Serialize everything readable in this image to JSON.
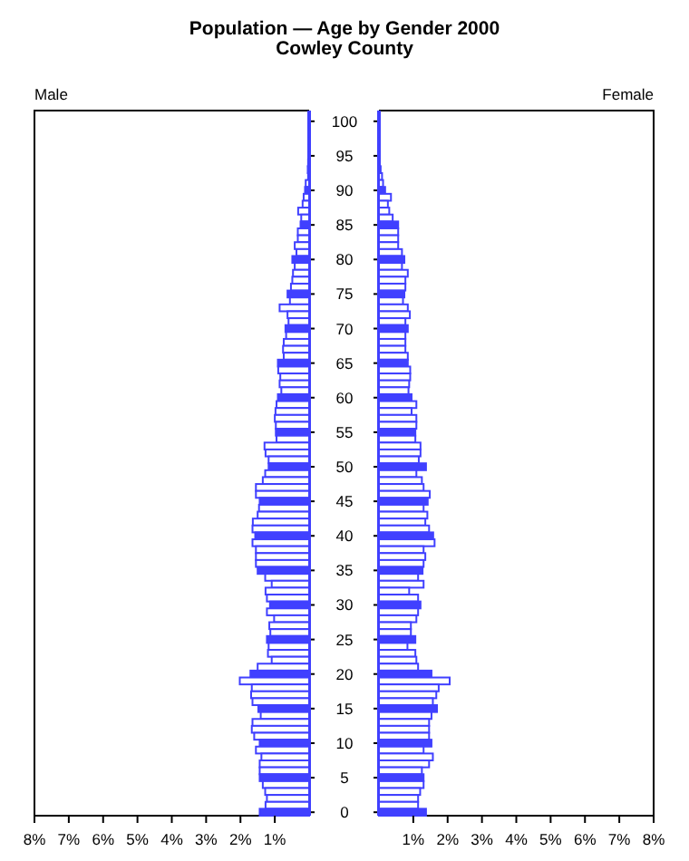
{
  "chart_data": [
    {
      "type": "bar",
      "orientation": "horizontal",
      "title": "Population — Age by Gender 2000",
      "subtitle": "Cowley County",
      "ylabel": "Male",
      "categories": [
        "100",
        null,
        null,
        null,
        null,
        "95",
        null,
        null,
        null,
        null,
        "90",
        null,
        null,
        null,
        null,
        "85",
        null,
        null,
        null,
        null,
        "80",
        null,
        null,
        null,
        null,
        "75",
        null,
        null,
        null,
        null,
        "70",
        null,
        null,
        null,
        null,
        "65",
        null,
        null,
        null,
        null,
        "60",
        null,
        null,
        null,
        null,
        "55",
        null,
        null,
        null,
        null,
        "50",
        null,
        null,
        null,
        null,
        "45",
        null,
        null,
        null,
        null,
        "40",
        null,
        null,
        null,
        null,
        "35",
        null,
        null,
        null,
        null,
        "30",
        null,
        null,
        null,
        null,
        "25",
        null,
        null,
        null,
        null,
        "20",
        null,
        null,
        null,
        null,
        "15",
        null,
        null,
        null,
        null,
        "10",
        null,
        null,
        null,
        null,
        "5",
        null,
        null,
        null,
        null,
        "0"
      ],
      "series": [
        {
          "color": "#4040ff",
          "values": [
            0.01,
            0.01,
            0.01,
            0.01,
            0.02,
            0.02,
            0.03,
            0.04,
            0.03,
            0.1,
            0.12,
            0.16,
            0.19,
            0.32,
            0.23,
            0.25,
            0.33,
            0.33,
            0.42,
            0.37,
            0.49,
            0.42,
            0.47,
            0.49,
            0.53,
            0.63,
            0.56,
            0.86,
            0.63,
            0.6,
            0.69,
            0.67,
            0.74,
            0.76,
            0.74,
            0.91,
            0.9,
            0.84,
            0.86,
            0.81,
            0.91,
            0.95,
            0.98,
            1.0,
            0.97,
            0.97,
            0.95,
            1.3,
            1.27,
            1.18,
            1.18,
            1.28,
            1.35,
            1.55,
            1.55,
            1.44,
            1.46,
            1.5,
            1.64,
            1.65,
            1.57,
            1.65,
            1.55,
            1.55,
            1.55,
            1.5,
            1.28,
            1.09,
            1.27,
            1.23,
            1.14,
            1.23,
            1.02,
            1.16,
            1.13,
            1.23,
            1.18,
            1.2,
            1.09,
            1.5,
            1.71,
            2.02,
            1.67,
            1.69,
            1.65,
            1.48,
            1.41,
            1.65,
            1.67,
            1.6,
            1.44,
            1.55,
            1.39,
            1.44,
            1.44,
            1.44,
            1.35,
            1.28,
            1.23,
            1.27,
            1.44
          ],
          "colors": [
            "#4040ff",
            "#ffffff",
            "#ffffff",
            "#ffffff",
            "#ffffff",
            "#4040ff",
            "#ffffff",
            "#ffffff",
            "#ffffff",
            "#ffffff",
            "#4040ff",
            "#ffffff",
            "#ffffff",
            "#ffffff",
            "#ffffff",
            "#4040ff",
            "#ffffff",
            "#ffffff",
            "#ffffff",
            "#ffffff",
            "#4040ff",
            "#ffffff",
            "#ffffff",
            "#ffffff",
            "#ffffff",
            "#4040ff",
            "#ffffff",
            "#ffffff",
            "#ffffff",
            "#ffffff",
            "#4040ff",
            "#ffffff",
            "#ffffff",
            "#ffffff",
            "#ffffff",
            "#4040ff",
            "#ffffff",
            "#ffffff",
            "#ffffff",
            "#ffffff",
            "#4040ff",
            "#ffffff",
            "#ffffff",
            "#ffffff",
            "#ffffff",
            "#4040ff",
            "#ffffff",
            "#ffffff",
            "#ffffff",
            "#ffffff",
            "#4040ff",
            "#ffffff",
            "#ffffff",
            "#ffffff",
            "#ffffff",
            "#4040ff",
            "#ffffff",
            "#ffffff",
            "#ffffff",
            "#ffffff",
            "#4040ff",
            "#ffffff",
            "#ffffff",
            "#ffffff",
            "#ffffff",
            "#4040ff",
            "#ffffff",
            "#ffffff",
            "#ffffff",
            "#ffffff",
            "#4040ff",
            "#ffffff",
            "#ffffff",
            "#ffffff",
            "#ffffff",
            "#4040ff",
            "#ffffff",
            "#ffffff",
            "#ffffff",
            "#ffffff",
            "#4040ff",
            "#ffffff",
            "#ffffff",
            "#ffffff",
            "#ffffff",
            "#4040ff",
            "#ffffff",
            "#ffffff",
            "#ffffff",
            "#ffffff",
            "#4040ff",
            "#ffffff",
            "#ffffff",
            "#ffffff",
            "#ffffff",
            "#4040ff",
            "#ffffff",
            "#ffffff",
            "#ffffff",
            "#ffffff",
            "#4040ff"
          ]
        }
      ],
      "xlim": [
        8,
        0
      ],
      "xticks": [
        {
          "value": 8,
          "label": "8%"
        },
        {
          "value": 7,
          "label": "7%"
        },
        {
          "value": 6,
          "label": "6%"
        },
        {
          "value": 5,
          "label": "5%"
        },
        {
          "value": 4,
          "label": "4%"
        },
        {
          "value": 3,
          "label": "3%"
        },
        {
          "value": 2,
          "label": "2%"
        },
        {
          "value": 1,
          "label": "1%"
        }
      ]
    },
    {
      "type": "bar",
      "orientation": "horizontal",
      "ylabel": "Female",
      "tick_labels": "x",
      "categories": [
        "100",
        null,
        null,
        null,
        null,
        "95",
        null,
        null,
        null,
        null,
        "90",
        null,
        null,
        null,
        null,
        "85",
        null,
        null,
        null,
        null,
        "80",
        null,
        null,
        null,
        null,
        "75",
        null,
        null,
        null,
        null,
        "70",
        null,
        null,
        null,
        null,
        "65",
        null,
        null,
        null,
        null,
        "60",
        null,
        null,
        null,
        null,
        "55",
        null,
        null,
        null,
        null,
        "50",
        null,
        null,
        null,
        null,
        "45",
        null,
        null,
        null,
        null,
        "40",
        null,
        null,
        null,
        null,
        "35",
        null,
        null,
        null,
        null,
        "30",
        null,
        null,
        null,
        null,
        "25",
        null,
        null,
        null,
        null,
        "20",
        null,
        null,
        null,
        null,
        "15",
        null,
        null,
        null,
        null,
        "10",
        null,
        null,
        null,
        null,
        "5",
        null,
        null,
        null,
        null,
        "0"
      ],
      "series": [
        {
          "color": "#4040ff",
          "values": [
            0.01,
            0.01,
            0.01,
            0.01,
            0.01,
            0.02,
            0.02,
            0.05,
            0.09,
            0.12,
            0.18,
            0.35,
            0.26,
            0.3,
            0.4,
            0.56,
            0.56,
            0.56,
            0.56,
            0.67,
            0.74,
            0.67,
            0.84,
            0.77,
            0.77,
            0.74,
            0.7,
            0.84,
            0.9,
            0.77,
            0.84,
            0.77,
            0.77,
            0.77,
            0.84,
            0.84,
            0.91,
            0.91,
            0.88,
            0.86,
            0.95,
            1.09,
            0.95,
            1.09,
            1.09,
            1.06,
            1.06,
            1.21,
            1.21,
            1.16,
            1.37,
            1.09,
            1.25,
            1.3,
            1.48,
            1.42,
            1.3,
            1.41,
            1.35,
            1.46,
            1.58,
            1.62,
            1.3,
            1.35,
            1.3,
            1.27,
            1.14,
            1.3,
            0.88,
            1.14,
            1.21,
            1.14,
            1.09,
            0.93,
            0.93,
            1.06,
            0.83,
            1.06,
            1.09,
            1.14,
            1.53,
            2.06,
            1.74,
            1.67,
            1.57,
            1.69,
            1.53,
            1.46,
            1.46,
            1.46,
            1.53,
            1.3,
            1.57,
            1.46,
            1.25,
            1.3,
            1.3,
            1.2,
            1.14,
            1.14,
            1.37
          ],
          "colors": [
            "#4040ff",
            "#ffffff",
            "#ffffff",
            "#ffffff",
            "#ffffff",
            "#4040ff",
            "#ffffff",
            "#ffffff",
            "#ffffff",
            "#ffffff",
            "#4040ff",
            "#ffffff",
            "#ffffff",
            "#ffffff",
            "#ffffff",
            "#4040ff",
            "#ffffff",
            "#ffffff",
            "#ffffff",
            "#ffffff",
            "#4040ff",
            "#ffffff",
            "#ffffff",
            "#ffffff",
            "#ffffff",
            "#4040ff",
            "#ffffff",
            "#ffffff",
            "#ffffff",
            "#ffffff",
            "#4040ff",
            "#ffffff",
            "#ffffff",
            "#ffffff",
            "#ffffff",
            "#4040ff",
            "#ffffff",
            "#ffffff",
            "#ffffff",
            "#ffffff",
            "#4040ff",
            "#ffffff",
            "#ffffff",
            "#ffffff",
            "#ffffff",
            "#4040ff",
            "#ffffff",
            "#ffffff",
            "#ffffff",
            "#ffffff",
            "#4040ff",
            "#ffffff",
            "#ffffff",
            "#ffffff",
            "#ffffff",
            "#4040ff",
            "#ffffff",
            "#ffffff",
            "#ffffff",
            "#ffffff",
            "#4040ff",
            "#ffffff",
            "#ffffff",
            "#ffffff",
            "#ffffff",
            "#4040ff",
            "#ffffff",
            "#ffffff",
            "#ffffff",
            "#ffffff",
            "#4040ff",
            "#ffffff",
            "#ffffff",
            "#ffffff",
            "#ffffff",
            "#4040ff",
            "#ffffff",
            "#ffffff",
            "#ffffff",
            "#ffffff",
            "#4040ff",
            "#ffffff",
            "#ffffff",
            "#ffffff",
            "#ffffff",
            "#4040ff",
            "#ffffff",
            "#ffffff",
            "#ffffff",
            "#ffffff",
            "#4040ff",
            "#ffffff",
            "#ffffff",
            "#ffffff",
            "#ffffff",
            "#4040ff",
            "#ffffff",
            "#ffffff",
            "#ffffff",
            "#ffffff",
            "#4040ff"
          ]
        }
      ],
      "xlim": [
        0,
        8
      ],
      "xticks": [
        {
          "value": 1,
          "label": "1%"
        },
        {
          "value": 2,
          "label": "2%"
        },
        {
          "value": 3,
          "label": "3%"
        },
        {
          "value": 4,
          "label": "4%"
        },
        {
          "value": 5,
          "label": "5%"
        },
        {
          "value": 6,
          "label": "6%"
        },
        {
          "value": 7,
          "label": "7%"
        },
        {
          "value": 8,
          "label": "8%"
        }
      ]
    }
  ]
}
